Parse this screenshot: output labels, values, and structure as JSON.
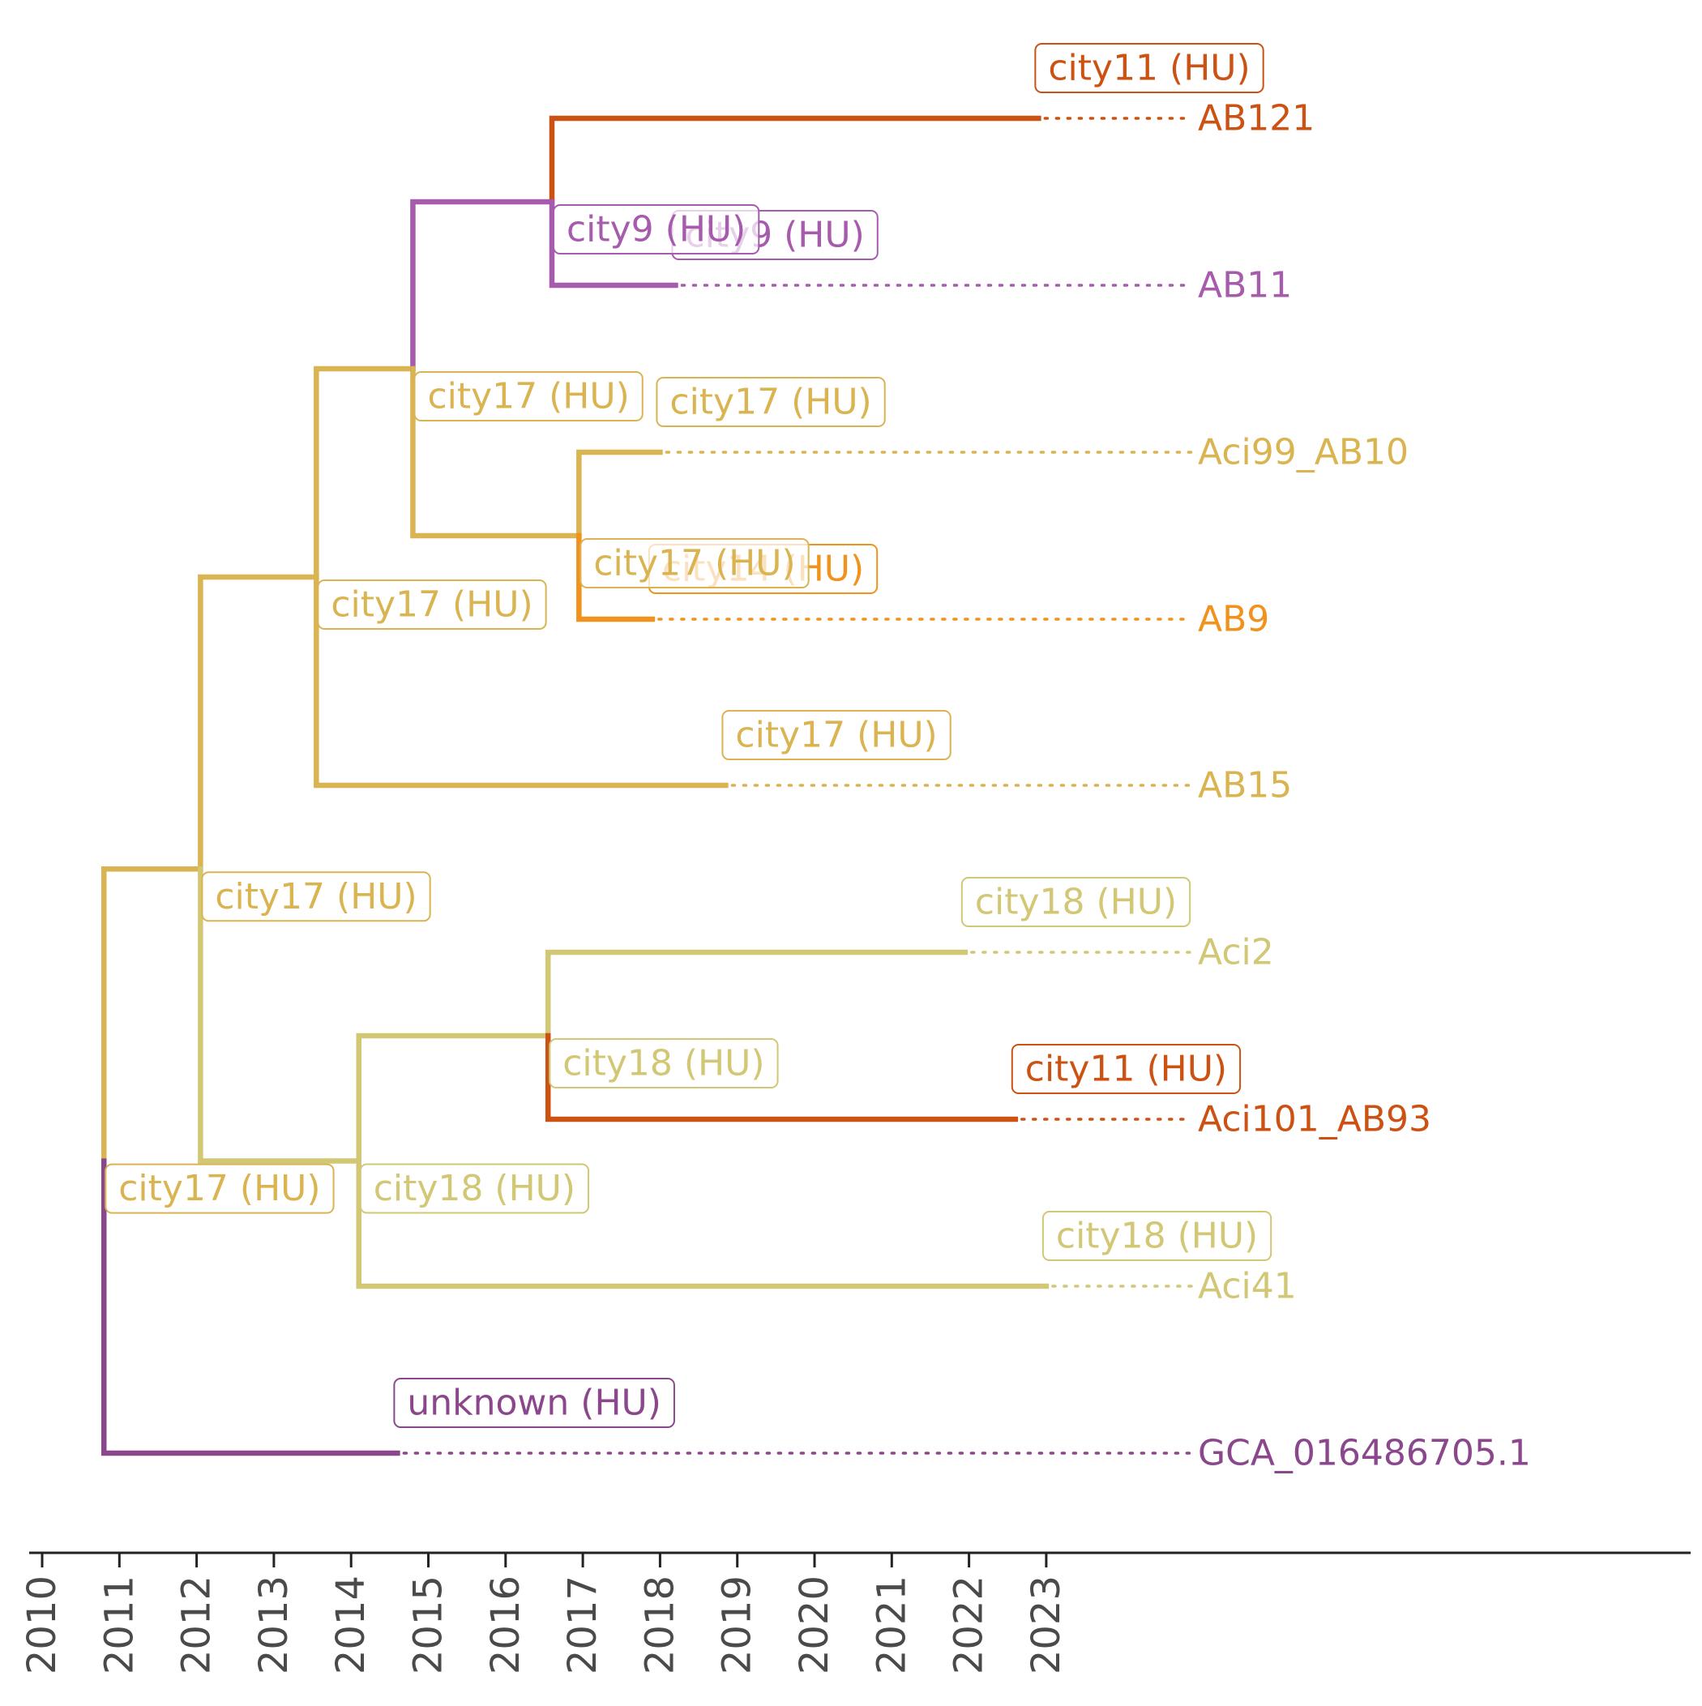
{
  "colors": {
    "city17": "#D9B450",
    "city18": "#D1C775",
    "city9": "#A65BAD",
    "city11": "#CC5213",
    "city14": "#F0921C",
    "unknown": "#8B478C",
    "axis": "#222222",
    "tick_text": "#4a4a4a"
  },
  "axis": {
    "ticks": [
      "2010",
      "2011",
      "2012",
      "2013",
      "2014",
      "2015",
      "2016",
      "2017",
      "2018",
      "2019",
      "2020",
      "2021",
      "2022",
      "2023"
    ]
  },
  "tips": [
    {
      "name": "AB121",
      "date": 2022.9,
      "location": "city11 (HU)",
      "color_key": "city11"
    },
    {
      "name": "AB11",
      "date": 2018.2,
      "location": "city9 (HU)",
      "color_key": "city9"
    },
    {
      "name": "Aci99_AB10",
      "date": 2018.0,
      "location": "city17 (HU)",
      "color_key": "city17"
    },
    {
      "name": "AB9",
      "date": 2017.9,
      "location": "city14 (HU)",
      "color_key": "city14"
    },
    {
      "name": "AB15",
      "date": 2018.85,
      "location": "city17 (HU)",
      "color_key": "city17"
    },
    {
      "name": "Aci2",
      "date": 2021.95,
      "location": "city18 (HU)",
      "color_key": "city18"
    },
    {
      "name": "Aci101_AB93",
      "date": 2022.6,
      "location": "city11 (HU)",
      "color_key": "city11"
    },
    {
      "name": "Aci41",
      "date": 2023.0,
      "location": "city18 (HU)",
      "color_key": "city18"
    },
    {
      "name": "GCA_016486705.1",
      "date": 2014.6,
      "location": "unknown (HU)",
      "color_key": "unknown"
    }
  ],
  "internal_nodes": [
    {
      "date": 2010.8,
      "location": "city17 (HU)",
      "color_key": "city17"
    },
    {
      "date": 2012.05,
      "location": "city17 (HU)",
      "color_key": "city17"
    },
    {
      "date": 2013.55,
      "location": "city17 (HU)",
      "color_key": "city17"
    },
    {
      "date": 2014.8,
      "location": "city17 (HU)",
      "color_key": "city17"
    },
    {
      "date": 2016.6,
      "location": "city9 (HU)",
      "color_key": "city9"
    },
    {
      "date": 2016.95,
      "location": "city17 (HU)",
      "color_key": "city17"
    },
    {
      "date": 2014.1,
      "location": "city18 (HU)",
      "color_key": "city18"
    },
    {
      "date": 2016.55,
      "location": "city18 (HU)",
      "color_key": "city18"
    }
  ]
}
